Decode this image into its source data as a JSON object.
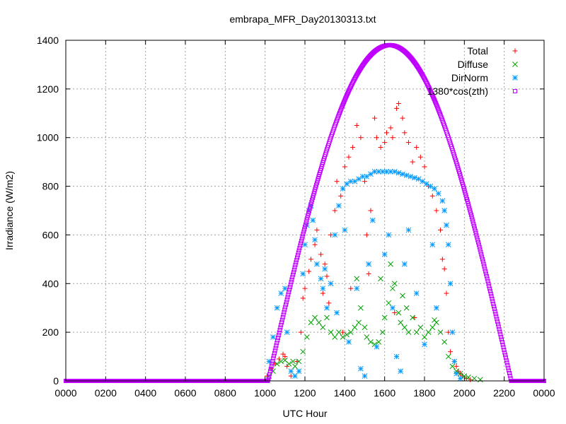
{
  "chart_data": {
    "type": "scatter",
    "title": "embrapa_MFR_Day20130313.txt",
    "xlabel": "UTC Hour",
    "ylabel": "Irradiance (W/m2)",
    "xlim": [
      0,
      24
    ],
    "ylim": [
      0,
      1400
    ],
    "x_ticks": [
      0,
      2,
      4,
      6,
      8,
      10,
      12,
      14,
      16,
      18,
      20,
      22,
      24
    ],
    "x_tick_labels": [
      "0000",
      "0200",
      "0400",
      "0600",
      "0800",
      "1000",
      "1200",
      "1400",
      "1600",
      "1800",
      "2000",
      "2200",
      "0000"
    ],
    "y_ticks": [
      0,
      200,
      400,
      600,
      800,
      1000,
      1200,
      1400
    ],
    "grid": true,
    "legend_position": "top-right",
    "series": [
      {
        "name": "Total",
        "marker": "plus",
        "color": "#ff0000",
        "points": [
          [
            10.1,
            20
          ],
          [
            10.3,
            50
          ],
          [
            10.5,
            70
          ],
          [
            10.7,
            90
          ],
          [
            10.9,
            110
          ],
          [
            11.0,
            100
          ],
          [
            11.1,
            60
          ],
          [
            11.3,
            20
          ],
          [
            11.6,
            80
          ],
          [
            11.8,
            200
          ],
          [
            11.9,
            340
          ],
          [
            12.0,
            380
          ],
          [
            12.2,
            450
          ],
          [
            12.3,
            500
          ],
          [
            12.5,
            560
          ],
          [
            12.6,
            620
          ],
          [
            12.8,
            520
          ],
          [
            12.9,
            360
          ],
          [
            13.0,
            480
          ],
          [
            13.1,
            430
          ],
          [
            13.3,
            600
          ],
          [
            13.5,
            700
          ],
          [
            13.6,
            820
          ],
          [
            13.8,
            760
          ],
          [
            14.0,
            880
          ],
          [
            14.2,
            920
          ],
          [
            14.4,
            960
          ],
          [
            14.6,
            1050
          ],
          [
            14.8,
            1000
          ],
          [
            15.0,
            820
          ],
          [
            15.1,
            600
          ],
          [
            15.3,
            700
          ],
          [
            15.5,
            1080
          ],
          [
            15.6,
            1000
          ],
          [
            15.8,
            960
          ],
          [
            16.0,
            980
          ],
          [
            16.1,
            1020
          ],
          [
            16.3,
            1040
          ],
          [
            16.4,
            1000
          ],
          [
            16.6,
            1120
          ],
          [
            16.7,
            1140
          ],
          [
            16.9,
            1080
          ],
          [
            17.0,
            1020
          ],
          [
            17.2,
            980
          ],
          [
            17.4,
            900
          ],
          [
            17.6,
            960
          ],
          [
            17.8,
            920
          ],
          [
            18.0,
            880
          ],
          [
            18.2,
            800
          ],
          [
            18.4,
            760
          ],
          [
            18.6,
            700
          ],
          [
            18.8,
            620
          ],
          [
            18.9,
            500
          ],
          [
            19.0,
            460
          ],
          [
            19.1,
            360
          ],
          [
            19.2,
            200
          ],
          [
            19.3,
            120
          ],
          [
            19.5,
            80
          ],
          [
            19.6,
            60
          ],
          [
            19.7,
            40
          ],
          [
            19.8,
            30
          ],
          [
            19.9,
            20
          ],
          [
            20.1,
            10
          ],
          [
            20.3,
            5
          ],
          [
            15.2,
            440
          ],
          [
            16.5,
            280
          ],
          [
            17.5,
            260
          ],
          [
            14.3,
            380
          ],
          [
            13.9,
            200
          ],
          [
            13.2,
            320
          ]
        ]
      },
      {
        "name": "Diffuse",
        "marker": "cross",
        "color": "#00a000",
        "points": [
          [
            10.2,
            20
          ],
          [
            10.4,
            40
          ],
          [
            10.6,
            70
          ],
          [
            10.8,
            80
          ],
          [
            11.0,
            85
          ],
          [
            11.2,
            70
          ],
          [
            11.4,
            80
          ],
          [
            11.5,
            60
          ],
          [
            11.7,
            80
          ],
          [
            11.9,
            120
          ],
          [
            12.1,
            180
          ],
          [
            12.3,
            240
          ],
          [
            12.5,
            260
          ],
          [
            12.7,
            240
          ],
          [
            12.9,
            220
          ],
          [
            13.1,
            260
          ],
          [
            13.3,
            200
          ],
          [
            13.5,
            180
          ],
          [
            13.7,
            200
          ],
          [
            13.9,
            180
          ],
          [
            14.1,
            190
          ],
          [
            14.3,
            200
          ],
          [
            14.5,
            220
          ],
          [
            14.7,
            240
          ],
          [
            14.8,
            300
          ],
          [
            15.0,
            220
          ],
          [
            15.1,
            180
          ],
          [
            15.3,
            160
          ],
          [
            15.5,
            150
          ],
          [
            15.7,
            160
          ],
          [
            15.9,
            200
          ],
          [
            16.0,
            260
          ],
          [
            16.2,
            320
          ],
          [
            16.4,
            380
          ],
          [
            16.5,
            400
          ],
          [
            16.7,
            280
          ],
          [
            16.8,
            240
          ],
          [
            17.0,
            220
          ],
          [
            17.2,
            200
          ],
          [
            17.4,
            260
          ],
          [
            17.6,
            200
          ],
          [
            17.8,
            220
          ],
          [
            18.0,
            180
          ],
          [
            18.2,
            200
          ],
          [
            18.4,
            220
          ],
          [
            18.6,
            240
          ],
          [
            18.8,
            200
          ],
          [
            19.0,
            160
          ],
          [
            19.2,
            100
          ],
          [
            19.4,
            60
          ],
          [
            19.6,
            40
          ],
          [
            19.8,
            30
          ],
          [
            20.0,
            20
          ],
          [
            20.2,
            15
          ],
          [
            20.5,
            10
          ],
          [
            20.8,
            5
          ],
          [
            15.8,
            420
          ],
          [
            16.3,
            480
          ],
          [
            14.6,
            420
          ],
          [
            17.1,
            300
          ],
          [
            18.5,
            250
          ],
          [
            16.9,
            350
          ]
        ]
      },
      {
        "name": "DirNorm",
        "marker": "star",
        "color": "#0099ff",
        "points": [
          [
            10.2,
            80
          ],
          [
            10.4,
            180
          ],
          [
            10.6,
            300
          ],
          [
            10.8,
            360
          ],
          [
            11.0,
            380
          ],
          [
            11.1,
            200
          ],
          [
            11.3,
            40
          ],
          [
            11.5,
            20
          ],
          [
            11.7,
            40
          ],
          [
            11.9,
            440
          ],
          [
            12.0,
            560
          ],
          [
            12.1,
            640
          ],
          [
            12.2,
            700
          ],
          [
            12.3,
            720
          ],
          [
            12.4,
            660
          ],
          [
            12.5,
            580
          ],
          [
            12.6,
            480
          ],
          [
            12.8,
            420
          ],
          [
            12.9,
            380
          ],
          [
            13.0,
            460
          ],
          [
            13.1,
            300
          ],
          [
            13.3,
            400
          ],
          [
            13.5,
            600
          ],
          [
            13.7,
            720
          ],
          [
            13.9,
            790
          ],
          [
            14.1,
            810
          ],
          [
            14.3,
            820
          ],
          [
            14.5,
            820
          ],
          [
            14.7,
            830
          ],
          [
            14.9,
            840
          ],
          [
            15.1,
            840
          ],
          [
            15.3,
            850
          ],
          [
            15.5,
            860
          ],
          [
            15.7,
            860
          ],
          [
            15.9,
            860
          ],
          [
            16.1,
            860
          ],
          [
            16.3,
            860
          ],
          [
            16.5,
            860
          ],
          [
            16.7,
            855
          ],
          [
            16.9,
            850
          ],
          [
            17.1,
            845
          ],
          [
            17.3,
            840
          ],
          [
            17.5,
            835
          ],
          [
            17.7,
            830
          ],
          [
            17.9,
            820
          ],
          [
            18.1,
            810
          ],
          [
            18.3,
            800
          ],
          [
            18.5,
            790
          ],
          [
            18.7,
            770
          ],
          [
            18.9,
            740
          ],
          [
            19.0,
            700
          ],
          [
            19.1,
            640
          ],
          [
            19.2,
            560
          ],
          [
            19.3,
            400
          ],
          [
            19.4,
            200
          ],
          [
            19.5,
            80
          ],
          [
            19.6,
            30
          ],
          [
            19.8,
            10
          ],
          [
            14.2,
            160
          ],
          [
            14.6,
            380
          ],
          [
            14.8,
            50
          ],
          [
            15.2,
            480
          ],
          [
            15.6,
            140
          ],
          [
            16.0,
            520
          ],
          [
            16.4,
            300
          ],
          [
            16.8,
            40
          ],
          [
            17.2,
            620
          ],
          [
            17.6,
            360
          ],
          [
            18.0,
            150
          ],
          [
            18.4,
            560
          ],
          [
            14.0,
            620
          ],
          [
            15.4,
            660
          ],
          [
            16.2,
            600
          ],
          [
            17.0,
            480
          ],
          [
            13.6,
            280
          ],
          [
            15.0,
            20
          ],
          [
            16.6,
            100
          ],
          [
            18.6,
            300
          ]
        ]
      },
      {
        "name": "1380*cos(zth)",
        "marker": "square",
        "color": "#c000ff",
        "curve": {
          "amplitude": 1380,
          "center": 16.25,
          "half_width": 6.1
        },
        "points": [
          [
            0,
            0
          ],
          [
            2,
            0
          ],
          [
            4,
            0
          ],
          [
            6,
            0
          ],
          [
            8,
            0
          ],
          [
            10,
            0
          ],
          [
            10.15,
            0
          ],
          [
            10.5,
            125
          ],
          [
            11.0,
            296
          ],
          [
            11.5,
            462
          ],
          [
            12.0,
            621
          ],
          [
            12.5,
            770
          ],
          [
            13.0,
            906
          ],
          [
            13.5,
            1027
          ],
          [
            14.0,
            1132
          ],
          [
            14.5,
            1219
          ],
          [
            15.0,
            1287
          ],
          [
            15.5,
            1335
          ],
          [
            16.0,
            1364
          ],
          [
            16.25,
            1380
          ],
          [
            16.5,
            1376
          ],
          [
            17.0,
            1353
          ],
          [
            17.5,
            1313
          ],
          [
            18.0,
            1254
          ],
          [
            18.5,
            1179
          ],
          [
            19.0,
            1086
          ],
          [
            19.5,
            979
          ],
          [
            20.0,
            858
          ],
          [
            20.5,
            723
          ],
          [
            21.0,
            578
          ],
          [
            21.5,
            425
          ],
          [
            22.0,
            264
          ],
          [
            22.35,
            0
          ],
          [
            23,
            0
          ],
          [
            24,
            0
          ]
        ]
      }
    ]
  }
}
